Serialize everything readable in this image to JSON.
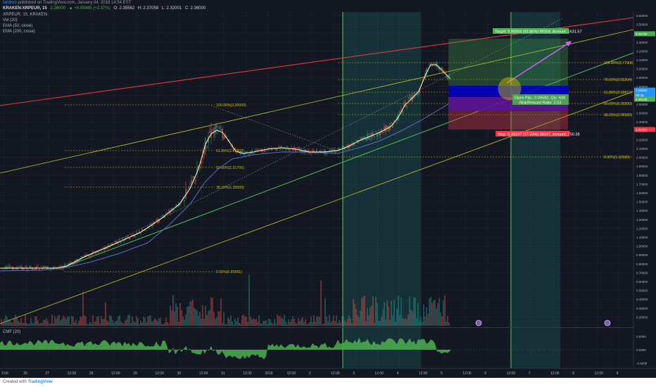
{
  "publish_line": {
    "user": "taniboo",
    "rest": "published on TradingView.com, January 04, 2018 14:54 EST"
  },
  "symbol_line": {
    "symbol": "KRAKEN:XRPEUR, 15",
    "last": "2.36000",
    "change": "▲ +0.05485 (+2.37%)",
    "open": "O: 2.35562",
    "high": "H: 2.37058",
    "low": "L: 2.32001",
    "close": "C: 2.36000"
  },
  "indicators": [
    "XRPEUR, 15, KRAKEN",
    "Vol (20)",
    "EMA (50, close)",
    "EMA (200, close)"
  ],
  "cmf_label": "CMF (20)",
  "price_axis": {
    "ticks": [
      "3.60000",
      "3.50000",
      "3.40000",
      "3.30000",
      "3.20000",
      "3.10000",
      "3.00000",
      "2.90000",
      "2.80000",
      "2.70000",
      "2.60000",
      "2.50000",
      "2.40000",
      "2.30000",
      "2.20000",
      "2.10000",
      "2.00000",
      "1.90000",
      "1.80000",
      "1.70000",
      "1.60000",
      "1.50000",
      "1.40000",
      "1.30000",
      "1.20000",
      "1.10000",
      "1.00000",
      "0.90000",
      "0.80000",
      "0.70000",
      "0.60000",
      "0.50000",
      "0.40000",
      "0.30000",
      "0.20000",
      "0.10000"
    ],
    "tags": [
      {
        "text": "3.25732",
        "color": "#4caf50"
      },
      {
        "text": "2.36000",
        "color": "#2196f3"
      },
      {
        "text": "09:45",
        "color": "#2196f3"
      },
      {
        "text": "2.26435",
        "color": "#4caf50"
      },
      {
        "text": "1.87211",
        "color": "#f23645"
      }
    ]
  },
  "cmf_axis": [
    "0.5000",
    "0.0000",
    "-0.5000"
  ],
  "time_axis": [
    "2:00",
    "26",
    "27",
    "12:00",
    "28",
    "12:00",
    "29",
    "12:00",
    "30",
    "12:00",
    "31",
    "12:00",
    "2018",
    "12:00",
    "2",
    "12:00",
    "3",
    "12:00",
    "4",
    "12:00",
    "5",
    "12:00",
    "6",
    "12:00",
    "7",
    "12:00",
    "8",
    "12:00",
    "9"
  ],
  "fib_left": [
    "100.00%(2.20000)",
    "61.80%(1.67892)",
    "50.00%(1.51796)",
    "38.20%(1.35699)",
    "0.00%(0.83591)"
  ],
  "fib_right": [
    "100.00%(2.77900)",
    "78.60%(2.53204)",
    "61.80%(2.33817)",
    "50.00%(2.20200)",
    "38.20%(2.06583)",
    "0.00%(1.62500)"
  ],
  "position": {
    "target": "Target: 0.99304 (43.86%) 99304, Amount: 1631.57",
    "open_pl": "Open P&L: 0.09582, Qty: 636",
    "rr": "Risk/Reward Ratio: 2.53",
    "stop": "Stop: 0.39247 (17.33%) 39247, Amount: 750.38",
    "target_color": "#4caf50",
    "stop_color": "#f23645",
    "entry_color": "#0000cc"
  },
  "footer": {
    "created": "Created with",
    "brand": "TradingView"
  },
  "colors": {
    "background": "#131722",
    "ema50": "#fff59d",
    "ema200": "#5c6bc0",
    "trend_red": "#e53935",
    "trend_green": "#4caf50",
    "trend_yellow": "#c6c62a",
    "fib": "#d4c200",
    "projection": "#d45cf0"
  }
}
